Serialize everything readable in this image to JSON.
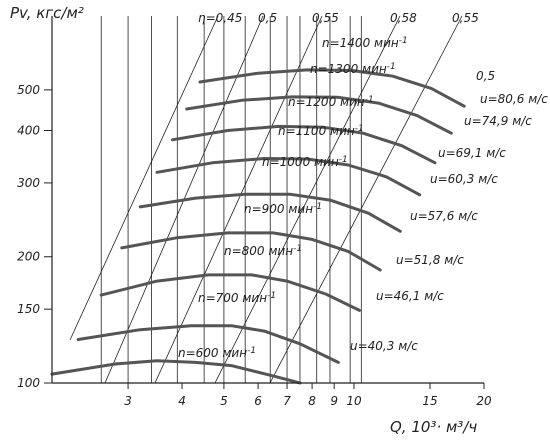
{
  "chart_data": {
    "type": "line",
    "title": "",
    "ylabel": "Pv, кгс/м²",
    "xlabel": "Q, 10³· м³/ч",
    "x_scale": "log",
    "y_scale": "log",
    "xlim": [
      2,
      20
    ],
    "ylim": [
      100,
      750
    ],
    "xticks": [
      3,
      4,
      5,
      6,
      7,
      8,
      9,
      10,
      15,
      20
    ],
    "yticks": [
      100,
      150,
      200,
      300,
      400,
      500
    ],
    "grid": "x-gridlines",
    "efficiency_labels": [
      "η=0,45",
      "0,5",
      "0,55",
      "0,58",
      "0,55",
      "0,5"
    ],
    "series": [
      {
        "name": "n=600 мин⁻¹",
        "x": [
          2.0,
          2.8,
          3.5,
          4.3,
          5.2,
          6.5,
          7.5
        ],
        "y": [
          105,
          111,
          113,
          112,
          110,
          104,
          100
        ]
      },
      {
        "name": "n=700 мин⁻¹",
        "x": [
          2.3,
          3.2,
          4.2,
          5.2,
          6.2,
          7.5,
          9.2
        ],
        "y": [
          127,
          134,
          137,
          137,
          133,
          124,
          112
        ]
      },
      {
        "name": "n=800 мин⁻¹",
        "x": [
          2.6,
          3.5,
          4.6,
          5.8,
          7.0,
          8.6,
          10.3
        ],
        "y": [
          162,
          175,
          181,
          181,
          175,
          163,
          149
        ]
      },
      {
        "name": "n=900 мин⁻¹",
        "x": [
          2.9,
          3.9,
          5.1,
          6.5,
          8.0,
          9.7,
          11.5
        ],
        "y": [
          210,
          222,
          228,
          228,
          220,
          206,
          186
        ]
      },
      {
        "name": "n=1000 мин⁻¹",
        "x": [
          3.2,
          4.3,
          5.6,
          7.1,
          8.8,
          10.8,
          12.8
        ],
        "y": [
          263,
          276,
          282,
          282,
          273,
          254,
          230
        ]
      },
      {
        "name": "n=1100 мин⁻¹",
        "x": [
          3.5,
          4.7,
          6.2,
          7.8,
          9.7,
          11.9,
          14.2
        ],
        "y": [
          318,
          335,
          343,
          342,
          331,
          310,
          281
        ]
      },
      {
        "name": "n=1200 мин⁻¹",
        "x": [
          3.8,
          5.1,
          6.7,
          8.5,
          10.5,
          12.9,
          15.4
        ],
        "y": [
          380,
          400,
          409,
          407,
          394,
          368,
          335
        ]
      },
      {
        "name": "n=1300 мин⁻¹",
        "x": [
          4.1,
          5.5,
          7.2,
          9.2,
          11.4,
          14.0,
          16.8
        ],
        "y": [
          450,
          472,
          481,
          480,
          465,
          434,
          394
        ]
      },
      {
        "name": "n=1400 мин⁻¹",
        "x": [
          4.4,
          6.0,
          7.8,
          9.9,
          12.3,
          15.1,
          18.0
        ],
        "y": [
          522,
          548,
          558,
          556,
          539,
          504,
          457
        ]
      }
    ],
    "tip_speed_labels": [
      "u=80,6 м/с",
      "u=74,9 м/с",
      "u=69,1 м/с",
      "u=60,3 м/с",
      "u=57,6 м/с",
      "u=51,8 м/с",
      "u=46,1 м/с",
      "u=40,3 м/с"
    ],
    "x_gridlines": [
      2.6,
      3.0,
      3.4,
      3.9,
      4.5,
      5.0,
      5.6,
      6.4,
      7.0,
      7.5,
      8.2,
      8.8,
      9.8,
      10.4
    ]
  }
}
